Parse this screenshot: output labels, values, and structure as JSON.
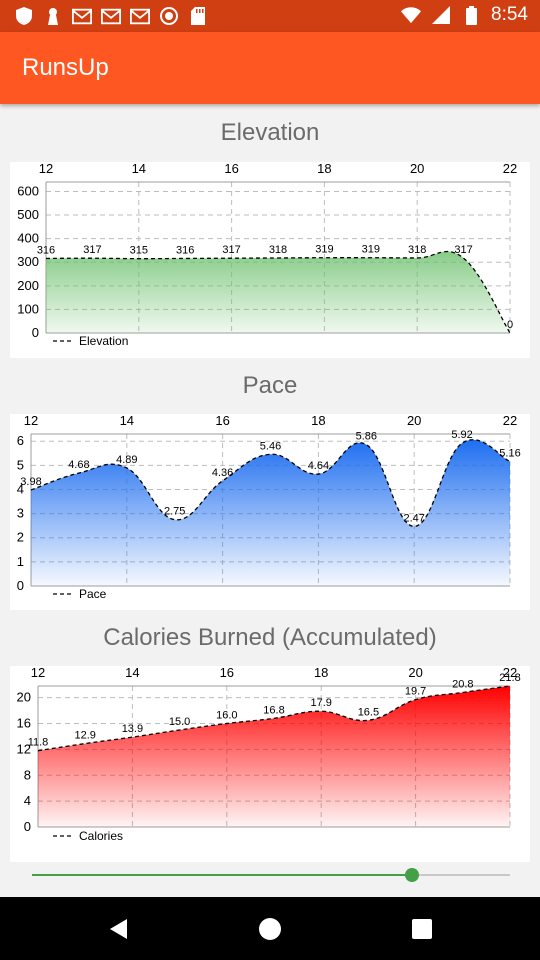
{
  "status_bar": {
    "time": "8:54",
    "left_icons": [
      "shield-icon",
      "keyhole-icon",
      "gmail-icon",
      "gmail-icon",
      "gmail-icon",
      "record-icon",
      "sd-card-icon"
    ],
    "right_icons": [
      "wifi-icon",
      "signal-icon",
      "battery-icon"
    ]
  },
  "app_bar": {
    "title": "RunsUp",
    "color": "#ff5722"
  },
  "charts": {
    "elevation": {
      "title": "Elevation"
    },
    "pace": {
      "title": "Pace"
    },
    "calories": {
      "title": "Calories Burned (Accumulated)"
    }
  },
  "chart_data": [
    {
      "type": "area",
      "title": "Elevation",
      "x_ticks": [
        "12",
        "14",
        "16",
        "18",
        "20",
        "22"
      ],
      "xlim": [
        12,
        22
      ],
      "y_ticks": [
        "0",
        "100",
        "200",
        "300",
        "400",
        "500",
        "600"
      ],
      "ylim": [
        0,
        640
      ],
      "grid": true,
      "legend": "bottom-left",
      "fill_color": "#6abf6a",
      "series": [
        {
          "name": "Elevation",
          "x": [
            12,
            13,
            14,
            15,
            16,
            17,
            18,
            19,
            20,
            21,
            22
          ],
          "values": [
            316,
            317,
            315,
            316,
            317,
            318,
            319,
            319,
            318,
            317,
            0
          ],
          "labels": [
            "316",
            "317",
            "315",
            "316",
            "317",
            "318",
            "319",
            "319",
            "318",
            "317",
            "0"
          ]
        }
      ]
    },
    {
      "type": "area",
      "title": "Pace",
      "x_ticks": [
        "12",
        "14",
        "16",
        "18",
        "20",
        "22"
      ],
      "xlim": [
        12,
        22
      ],
      "y_ticks": [
        "0",
        "1",
        "2",
        "3",
        "4",
        "5",
        "6"
      ],
      "ylim": [
        0,
        6.3
      ],
      "grid": true,
      "legend": "bottom-left",
      "fill_color": "#1e6ef0",
      "series": [
        {
          "name": "Pace",
          "x": [
            12,
            13,
            14,
            15,
            16,
            17,
            18,
            19,
            20,
            21,
            22
          ],
          "values": [
            3.98,
            4.68,
            4.89,
            2.75,
            4.36,
            5.46,
            4.64,
            5.86,
            2.47,
            5.92,
            5.16
          ],
          "labels": [
            "3.98",
            "4.68",
            "4.89",
            "2.75",
            "4.36",
            "5.46",
            "4.64",
            "5.86",
            "2.47",
            "5.92",
            "5.16"
          ]
        }
      ]
    },
    {
      "type": "area",
      "title": "Calories Burned (Accumulated)",
      "x_ticks": [
        "12",
        "14",
        "16",
        "18",
        "20",
        "22"
      ],
      "xlim": [
        12,
        22
      ],
      "y_ticks": [
        "0",
        "4",
        "8",
        "12",
        "16",
        "20"
      ],
      "ylim": [
        0,
        21.8
      ],
      "grid": true,
      "legend": "bottom-left",
      "fill_color": "#ff0000",
      "series": [
        {
          "name": "Calories",
          "x": [
            12,
            13,
            14,
            15,
            16,
            17,
            18,
            19,
            20,
            21,
            22
          ],
          "values": [
            11.8,
            12.9,
            13.9,
            15.0,
            16.0,
            16.8,
            17.9,
            16.5,
            19.7,
            20.8,
            21.8
          ],
          "labels": [
            "11.8",
            "12.9",
            "13.9",
            "15.0",
            "16.0",
            "16.8",
            "17.9",
            "16.5",
            "19.7",
            "20.8",
            "21.8"
          ]
        }
      ]
    }
  ],
  "slider": {
    "value_fraction": 0.795,
    "color": "#43a047"
  },
  "nav_bar": {
    "icons": [
      "back-icon",
      "home-icon",
      "recents-icon"
    ]
  }
}
